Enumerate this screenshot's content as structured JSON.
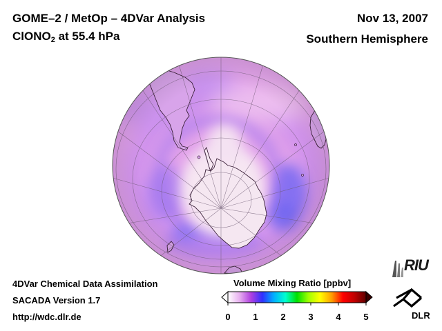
{
  "header": {
    "title": "GOME–2 / MetOp – 4DVar Analysis",
    "species": "ClONO",
    "species_subscript": "2",
    "level": " at 55.4 hPa",
    "date": "Nov 13, 2007",
    "hemisphere": "Southern Hemisphere"
  },
  "footer": {
    "line1": "4DVar Chemical Data Assimilation",
    "line2": "SACADA Version 1.7",
    "line3": "http://wdc.dlr.de"
  },
  "colorbar": {
    "title": "Volume Mixing Ratio [ppbv]",
    "ticks": [
      "0",
      "1",
      "2",
      "3",
      "4",
      "5"
    ],
    "min": 0,
    "max": 5,
    "colors": [
      "#ffffff",
      "#e8b0f0",
      "#b040e0",
      "#3030ff",
      "#00b0ff",
      "#00ffd0",
      "#00e000",
      "#a0ff00",
      "#ffff00",
      "#ffa000",
      "#ff0000",
      "#c00000",
      "#600000"
    ],
    "under_color": "#ffffff",
    "over_color": "#3a0000"
  },
  "logos": {
    "riu": "RIU",
    "dlr": "DLR"
  },
  "map": {
    "projection": "orthographic",
    "hemisphere_center": "South Pole",
    "land_color": "#f4e8f2",
    "ocean_base_color": "#e2a2ea",
    "low_region_color": "#8a70f0"
  }
}
